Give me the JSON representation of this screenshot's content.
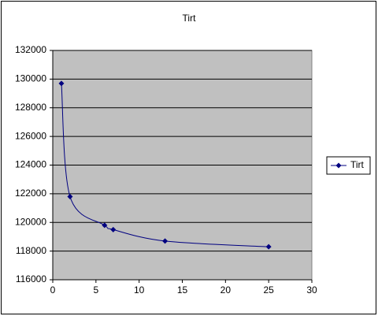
{
  "chart_data": {
    "type": "scatter",
    "title": "Tirt",
    "x": [
      1,
      2,
      6,
      7,
      13,
      25
    ],
    "series": [
      {
        "name": "Tirt",
        "color": "#000080",
        "values": [
          129700,
          121800,
          119800,
          119500,
          118700,
          118300
        ]
      }
    ],
    "xlim": [
      0,
      30
    ],
    "xticks": [
      0,
      5,
      10,
      15,
      20,
      25,
      30
    ],
    "ylim": [
      116000,
      132000
    ],
    "yticks": [
      116000,
      118000,
      120000,
      122000,
      124000,
      126000,
      128000,
      130000,
      132000
    ],
    "grid": true,
    "smooth": true,
    "legend": "right",
    "plot_background": "#c0c0c0"
  }
}
